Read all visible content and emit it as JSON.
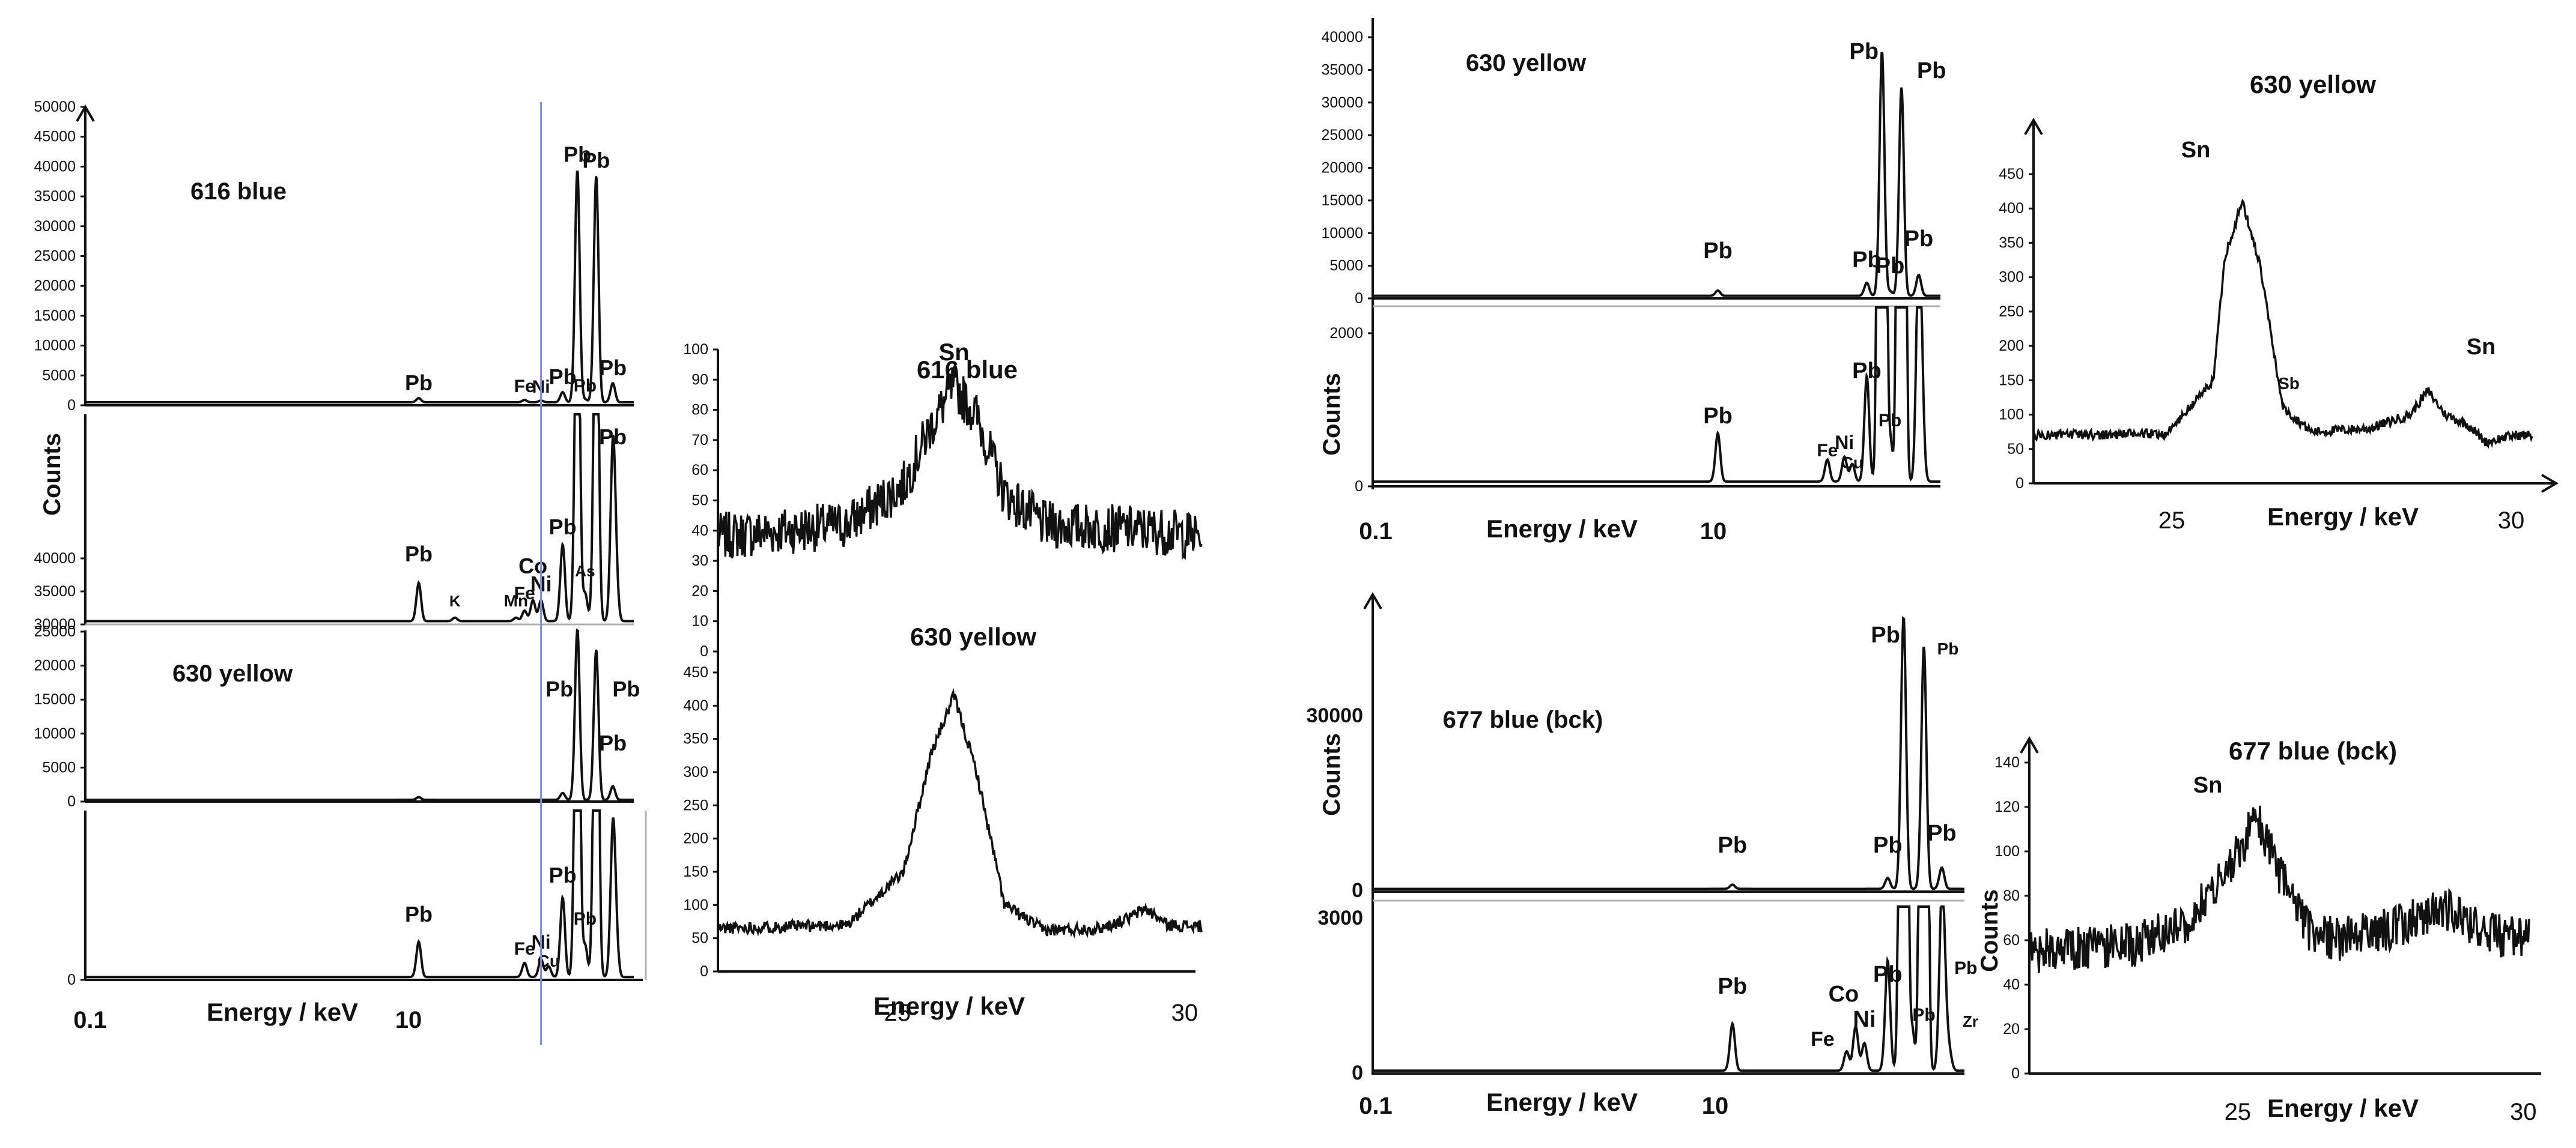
{
  "figure": {
    "colors": {
      "trace": "#111111",
      "baseline": "#b0b0b0",
      "marker_line": "#7f8fcf",
      "background": "#ffffff"
    }
  },
  "chart_data": [
    {
      "id": "p616",
      "type": "line",
      "title": "",
      "ylabel": "Counts",
      "xlabel": "Energy / keV",
      "x_scale": "log",
      "x_tick_labels": [
        "0.1",
        "10"
      ],
      "upper_panel": {
        "ylim": [
          0,
          50000
        ],
        "y_ticks": [
          0,
          5000,
          10000,
          15000,
          20000,
          25000,
          30000,
          35000,
          40000,
          45000,
          50000
        ],
        "sample_label": "616 blue",
        "peaks": [
          {
            "label": "Pb",
            "keV": 2.35,
            "counts": 700
          },
          {
            "label": "Fe",
            "keV": 6.4,
            "counts": 400
          },
          {
            "label": "Ni",
            "keV": 7.48,
            "counts": 300
          },
          {
            "label": "Pb",
            "keV": 9.18,
            "counts": 1700
          },
          {
            "label": "Pb",
            "keV": 10.55,
            "counts": 39000
          },
          {
            "label": "Pb",
            "keV": 11.35,
            "counts": 500
          },
          {
            "label": "Pb",
            "keV": 12.61,
            "counts": 38000
          },
          {
            "label": "Pb",
            "keV": 14.76,
            "counts": 3200
          }
        ]
      },
      "lower_panel": {
        "ylim": [
          30000,
          40000
        ],
        "y_ticks": [
          30000,
          35000,
          40000
        ],
        "peaks": [
          {
            "label": "Pb",
            "keV": 2.35
          },
          {
            "label": "K",
            "keV": 3.31
          },
          {
            "label": "Mn",
            "keV": 5.9
          },
          {
            "label": "Fe",
            "keV": 6.4
          },
          {
            "label": "Co",
            "keV": 6.93
          },
          {
            "label": "Ni",
            "keV": 7.48
          },
          {
            "label": "Pb",
            "keV": 9.18
          },
          {
            "label": "As",
            "keV": 10.54
          },
          {
            "label": "Pb",
            "keV": 14.76
          }
        ]
      }
    },
    {
      "id": "p630a",
      "type": "line",
      "title": "",
      "ylabel": "",
      "xlabel": "",
      "x_scale": "log",
      "upper_panel": {
        "ylim": [
          0,
          25000
        ],
        "y_ticks": [
          0,
          5000,
          10000,
          15000,
          20000,
          25000
        ],
        "sample_label": "630 yellow",
        "peaks": [
          {
            "label": "Pb",
            "keV": 10.55,
            "counts": 25000
          },
          {
            "label": "Pb",
            "keV": 12.61,
            "counts": 22000
          },
          {
            "label": "Pb",
            "keV": 14.76,
            "counts": 2000
          }
        ]
      },
      "lower_panel": {
        "ylim": [
          0,
          1
        ],
        "y_ticks": [
          0
        ],
        "peaks": [
          {
            "label": "Pb",
            "keV": 2.35
          },
          {
            "label": "Fe",
            "keV": 6.4
          },
          {
            "label": "Ni",
            "keV": 7.48
          },
          {
            "label": "Cu",
            "keV": 8.04
          },
          {
            "label": "Pb",
            "keV": 9.18
          },
          {
            "label": "Pb",
            "keV": 11.35
          }
        ]
      }
    },
    {
      "id": "zoom1",
      "type": "line",
      "title": "",
      "xlabel": "Energy / keV",
      "x_tick_labels": [
        "25",
        "30"
      ],
      "top_panel": {
        "ylim": [
          0,
          100
        ],
        "y_ticks": [
          0,
          10,
          20,
          30,
          40,
          50,
          60,
          70,
          80,
          90,
          100
        ],
        "sample_label": "616 blue",
        "peak_label": "Sn",
        "x": [
          21.7,
          24.0,
          25.0,
          25.5,
          25.9,
          26.3,
          26.8,
          27.5,
          28.5,
          29.5,
          30.3
        ],
        "y": [
          38,
          42,
          55,
          75,
          88,
          78,
          52,
          42,
          41,
          40,
          38
        ]
      },
      "bottom_panel": {
        "ylim": [
          0,
          450
        ],
        "y_ticks": [
          0,
          50,
          100,
          150,
          200,
          250,
          300,
          350,
          400,
          450
        ],
        "sample_label": "630 yellow",
        "x": [
          21.7,
          24.0,
          25.0,
          25.5,
          25.9,
          26.3,
          26.8,
          27.5,
          28.5,
          29.0,
          29.3,
          29.7,
          30.3
        ],
        "y": [
          65,
          70,
          150,
          330,
          415,
          300,
          100,
          62,
          65,
          80,
          95,
          70,
          68
        ]
      }
    },
    {
      "id": "p630b",
      "type": "line",
      "title": "",
      "ylabel": "Counts",
      "xlabel": "Energy / keV",
      "x_scale": "log",
      "x_tick_labels": [
        "0.1",
        "10"
      ],
      "upper_panel": {
        "ylim": [
          0,
          40000
        ],
        "y_ticks": [
          0,
          5000,
          10000,
          15000,
          20000,
          25000,
          30000,
          35000,
          40000
        ],
        "sample_label": "630 yellow",
        "peaks": [
          {
            "label": "Pb",
            "keV": 2.35,
            "counts": 800
          },
          {
            "label": "Pb",
            "keV": 9.18,
            "counts": 2000
          },
          {
            "label": "Pb",
            "keV": 10.55,
            "counts": 37500
          },
          {
            "label": "Pb",
            "keV": 11.35,
            "counts": 700
          },
          {
            "label": "Pb",
            "keV": 12.61,
            "counts": 32000
          },
          {
            "label": "Pb",
            "keV": 14.76,
            "counts": 3200
          }
        ]
      },
      "lower_panel": {
        "ylim": [
          0,
          2000
        ],
        "y_ticks": [
          0,
          2000
        ],
        "peaks": [
          {
            "label": "Pb",
            "keV": 2.35,
            "counts": 550
          },
          {
            "label": "Fe",
            "keV": 6.4,
            "counts": 250
          },
          {
            "label": "Ni",
            "keV": 7.48,
            "counts": 280
          },
          {
            "label": "Cu",
            "keV": 8.04,
            "counts": 200
          },
          {
            "label": "Pb",
            "keV": 9.18,
            "counts": 1200
          },
          {
            "label": "Pb",
            "keV": 11.35,
            "counts": 500
          }
        ]
      }
    },
    {
      "id": "zoom630",
      "type": "line",
      "title": "630 yellow",
      "xlabel": "Energy / keV",
      "ylim": [
        0,
        450
      ],
      "y_ticks": [
        0,
        50,
        100,
        150,
        200,
        250,
        300,
        350,
        400,
        450
      ],
      "x_tick_labels": [
        "25",
        "30"
      ],
      "peak_labels": [
        {
          "label": "Sn",
          "keV": 25.3
        },
        {
          "label": "Sb",
          "keV": 26.4
        },
        {
          "label": "Sn",
          "keV": 28.5
        }
      ],
      "x": [
        21.7,
        24.0,
        24.8,
        25.0,
        25.3,
        25.6,
        26.0,
        26.5,
        27.5,
        28.2,
        28.5,
        28.8,
        29.2,
        29.5,
        30.0
      ],
      "y": [
        70,
        72,
        150,
        330,
        410,
        320,
        110,
        75,
        80,
        100,
        135,
        100,
        85,
        60,
        70
      ]
    },
    {
      "id": "p677",
      "type": "line",
      "title": "",
      "ylabel": "Counts",
      "xlabel": "Energy / keV",
      "x_scale": "log",
      "x_tick_labels": [
        "0.1",
        "10"
      ],
      "upper_panel": {
        "ylim": [
          0,
          45000
        ],
        "y_ticks": [
          0,
          30000
        ],
        "sample_label": "677 blue (bck)",
        "peaks": [
          {
            "label": "Pb",
            "keV": 2.35,
            "counts": 700
          },
          {
            "label": "Pb",
            "keV": 9.18,
            "counts": 1800
          },
          {
            "label": "Pb",
            "keV": 10.55,
            "counts": 45000
          },
          {
            "label": "Pb",
            "keV": 12.61,
            "counts": 40000
          },
          {
            "label": "Pb",
            "keV": 14.76,
            "counts": 3500
          }
        ]
      },
      "lower_panel": {
        "ylim": [
          0,
          3000
        ],
        "y_ticks": [
          0,
          3000
        ],
        "peaks": [
          {
            "label": "Pb",
            "keV": 2.35,
            "counts": 850
          },
          {
            "label": "Fe",
            "keV": 6.4,
            "counts": 350
          },
          {
            "label": "Co",
            "keV": 6.93,
            "counts": 800
          },
          {
            "label": "Ni",
            "keV": 7.48,
            "counts": 500
          },
          {
            "label": "Pb",
            "keV": 9.18,
            "counts": 2000
          },
          {
            "label": "Pb",
            "keV": 11.35,
            "counts": 800
          },
          {
            "label": "Pb",
            "keV": 14.76,
            "counts": 3000
          },
          {
            "label": "Zr",
            "keV": 15.78,
            "counts": 300
          }
        ]
      }
    },
    {
      "id": "zoom677",
      "type": "line",
      "title": "677 blue (bck)",
      "xlabel": "Energy / keV",
      "ylabel": "Counts",
      "ylim": [
        0,
        140
      ],
      "y_ticks": [
        0,
        20,
        40,
        60,
        80,
        100,
        120,
        140
      ],
      "x_tick_labels": [
        "25",
        "30"
      ],
      "peak_labels": [
        {
          "label": "Sn",
          "keV": 25.6
        }
      ],
      "x": [
        21.7,
        23.5,
        24.5,
        25.2,
        25.6,
        26.0,
        26.5,
        27.0,
        28.0,
        28.8,
        29.5,
        30.2
      ],
      "y": [
        55,
        58,
        70,
        95,
        115,
        90,
        65,
        60,
        66,
        75,
        64,
        60
      ]
    }
  ]
}
